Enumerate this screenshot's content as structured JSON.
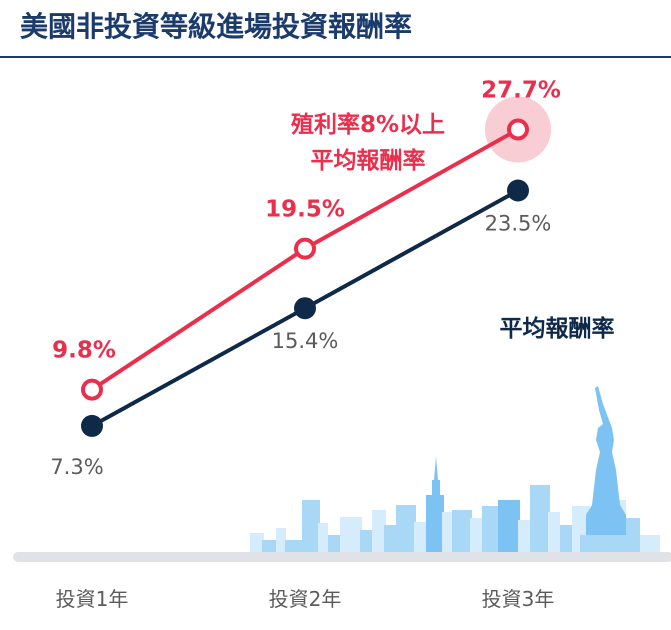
{
  "title": "美國非投資等級進場投資報酬率",
  "colors": {
    "title": "#1b3b6c",
    "accent": "#ea2f4d",
    "navy": "#0f2a48",
    "gray_text": "#5b5b5b",
    "axis": "#dfe2e6",
    "halo": "#f8cdd4",
    "skyline_light": "#d4ecfb",
    "skyline_mid": "#a9d7f6",
    "skyline_dark": "#7cc2f2"
  },
  "chart_data": {
    "type": "line",
    "categories": [
      "投資1年",
      "投資2年",
      "投資3年"
    ],
    "ylim": [
      0,
      32
    ],
    "grid": false,
    "series": [
      {
        "name": "殖利率8%以上平均報酬率",
        "name_lines": [
          "殖利率8%以上",
          "平均報酬率"
        ],
        "color": "#ea2f4d",
        "values": [
          9.8,
          19.5,
          27.7
        ],
        "labels": [
          "9.8%",
          "19.5%",
          "27.7%"
        ],
        "highlight_last": true
      },
      {
        "name": "平均報酬率",
        "name_lines": [
          "平均報酬率"
        ],
        "color": "#0f2a48",
        "values": [
          7.3,
          15.4,
          23.5
        ],
        "labels": [
          "7.3%",
          "15.4%",
          "23.5%"
        ]
      }
    ]
  },
  "decoration": {
    "skyline": "new-york-skyline-illustration",
    "landmark": "statue-of-liberty-illustration"
  }
}
